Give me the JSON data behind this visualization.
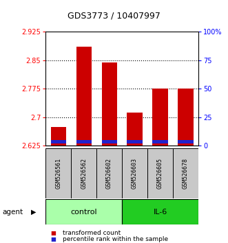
{
  "title": "GDS3773 / 10407997",
  "samples": [
    "GSM526561",
    "GSM526562",
    "GSM526602",
    "GSM526603",
    "GSM526605",
    "GSM526678"
  ],
  "red_values": [
    2.675,
    2.885,
    2.843,
    2.712,
    2.775,
    2.775
  ],
  "ymin": 2.625,
  "ymax": 2.925,
  "yticks": [
    2.625,
    2.7,
    2.775,
    2.85,
    2.925
  ],
  "ytick_labels": [
    "2.625",
    "2.7",
    "2.775",
    "2.85",
    "2.925"
  ],
  "right_yticks": [
    0,
    25,
    50,
    75,
    100
  ],
  "right_ytick_labels": [
    "0",
    "25",
    "50",
    "75",
    "100%"
  ],
  "grid_ticks": [
    2.7,
    2.775,
    2.85
  ],
  "bar_width": 0.6,
  "red_color": "#CC0000",
  "blue_color": "#2222CC",
  "control_color": "#AAFFAA",
  "il6_color": "#22CC22",
  "gray_color": "#C8C8C8",
  "title_fontsize": 9,
  "tick_fontsize": 7,
  "label_fontsize": 6,
  "group_fontsize": 8,
  "legend_fontsize": 6.5
}
